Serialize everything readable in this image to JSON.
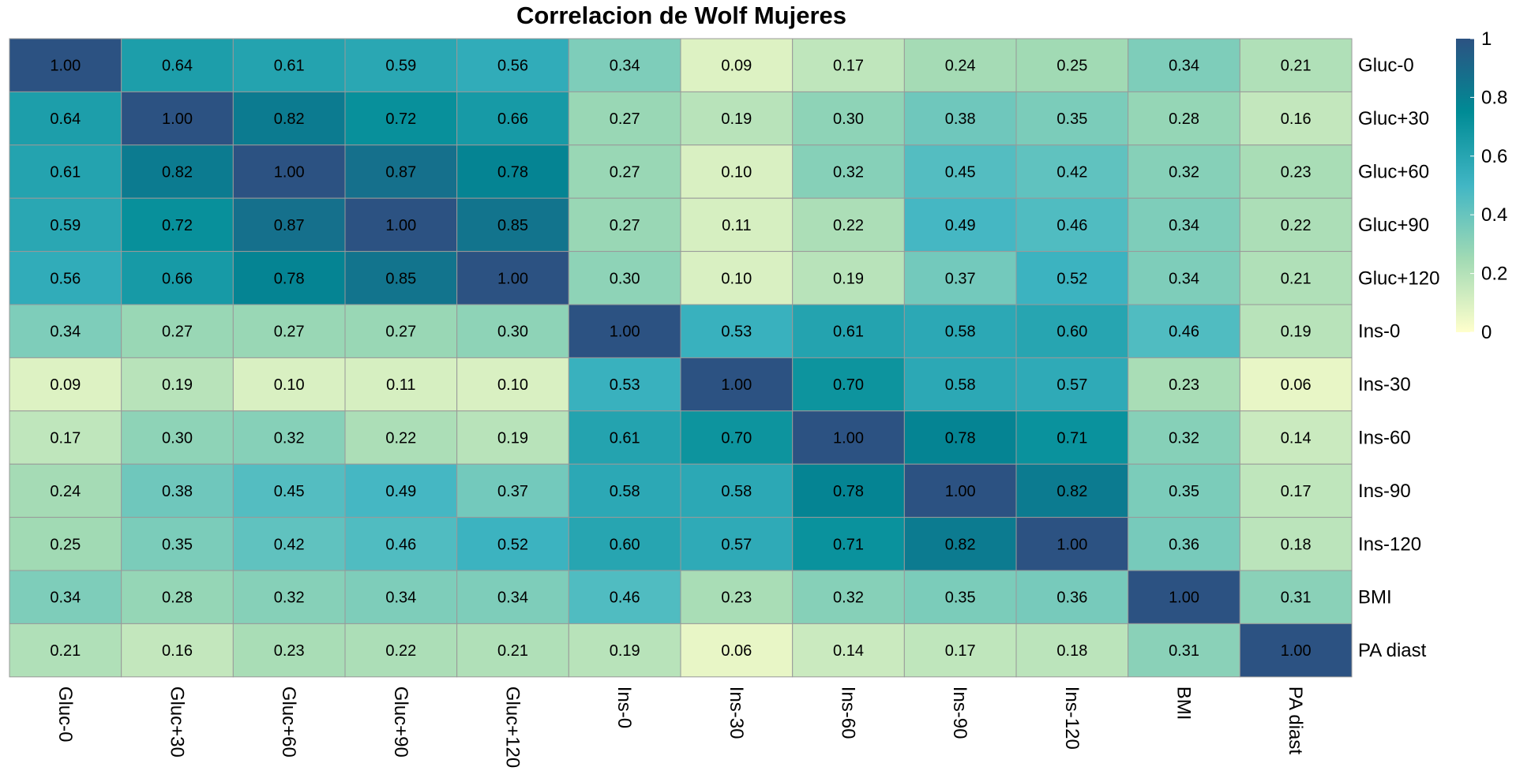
{
  "chart_data": {
    "type": "heatmap",
    "title": "Correlacion de Wolf Mujeres",
    "row_labels": [
      "Gluc-0",
      "Gluc+30",
      "Gluc+60",
      "Gluc+90",
      "Gluc+120",
      "Ins-0",
      "Ins-30",
      "Ins-60",
      "Ins-90",
      "Ins-120",
      "BMI",
      "PA diast"
    ],
    "col_labels": [
      "Gluc-0",
      "Gluc+30",
      "Gluc+60",
      "Gluc+90",
      "Gluc+120",
      "Ins-0",
      "Ins-30",
      "Ins-60",
      "Ins-90",
      "Ins-120",
      "BMI",
      "PA diast"
    ],
    "values": [
      [
        1.0,
        0.64,
        0.61,
        0.59,
        0.56,
        0.34,
        0.09,
        0.17,
        0.24,
        0.25,
        0.34,
        0.21
      ],
      [
        0.64,
        1.0,
        0.82,
        0.72,
        0.66,
        0.27,
        0.19,
        0.3,
        0.38,
        0.35,
        0.28,
        0.16
      ],
      [
        0.61,
        0.82,
        1.0,
        0.87,
        0.78,
        0.27,
        0.1,
        0.32,
        0.45,
        0.42,
        0.32,
        0.23
      ],
      [
        0.59,
        0.72,
        0.87,
        1.0,
        0.85,
        0.27,
        0.11,
        0.22,
        0.49,
        0.46,
        0.34,
        0.22
      ],
      [
        0.56,
        0.66,
        0.78,
        0.85,
        1.0,
        0.3,
        0.1,
        0.19,
        0.37,
        0.52,
        0.34,
        0.21
      ],
      [
        0.34,
        0.27,
        0.27,
        0.27,
        0.3,
        1.0,
        0.53,
        0.61,
        0.58,
        0.6,
        0.46,
        0.19
      ],
      [
        0.09,
        0.19,
        0.1,
        0.11,
        0.1,
        0.53,
        1.0,
        0.7,
        0.58,
        0.57,
        0.23,
        0.06
      ],
      [
        0.17,
        0.3,
        0.32,
        0.22,
        0.19,
        0.61,
        0.7,
        1.0,
        0.78,
        0.71,
        0.32,
        0.14
      ],
      [
        0.24,
        0.38,
        0.45,
        0.49,
        0.37,
        0.58,
        0.58,
        0.78,
        1.0,
        0.82,
        0.35,
        0.17
      ],
      [
        0.25,
        0.35,
        0.42,
        0.46,
        0.52,
        0.6,
        0.57,
        0.71,
        0.82,
        1.0,
        0.36,
        0.18
      ],
      [
        0.34,
        0.28,
        0.32,
        0.34,
        0.34,
        0.46,
        0.23,
        0.32,
        0.35,
        0.36,
        1.0,
        0.31
      ],
      [
        0.21,
        0.16,
        0.23,
        0.22,
        0.21,
        0.19,
        0.06,
        0.14,
        0.17,
        0.18,
        0.31,
        1.0
      ]
    ],
    "value_range": [
      0,
      1
    ],
    "colorscale": [
      "#FFFFCC",
      "#A1DAB4",
      "#41B6C4",
      "#008B95",
      "#2C5282"
    ],
    "legend": {
      "position": "right",
      "ticks": [
        0,
        0.2,
        0.4,
        0.6,
        0.8,
        1
      ],
      "tick_labels": [
        "0",
        "0.2",
        "0.4",
        "0.6",
        "0.8",
        "1"
      ]
    },
    "cell_border_color": "#999999"
  }
}
